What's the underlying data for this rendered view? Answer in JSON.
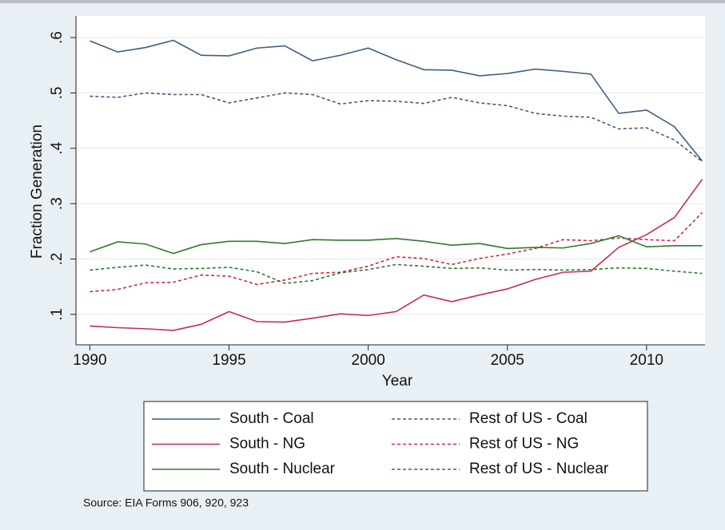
{
  "chart_data": {
    "type": "line",
    "xlabel": "Year",
    "ylabel": "Fraction Generation",
    "note": "Source: EIA Forms 906, 920, 923",
    "x": [
      1990,
      1991,
      1992,
      1993,
      1994,
      1995,
      1996,
      1997,
      1998,
      1999,
      2000,
      2001,
      2002,
      2003,
      2004,
      2005,
      2006,
      2007,
      2008,
      2009,
      2010,
      2011,
      2012
    ],
    "xlim": [
      1989.5,
      2012.1
    ],
    "xticks": [
      1990,
      1995,
      2000,
      2005,
      2010
    ],
    "ylim": [
      0.045,
      0.639
    ],
    "yticks": [
      {
        "value": 0.1,
        "label": ".1"
      },
      {
        "value": 0.2,
        "label": ".2"
      },
      {
        "value": 0.3,
        "label": ".3"
      },
      {
        "value": 0.4,
        "label": ".4"
      },
      {
        "value": 0.5,
        "label": ".5"
      },
      {
        "value": 0.6,
        "label": ".6"
      }
    ],
    "grid": true,
    "series": [
      {
        "name": "South - Coal",
        "color": "#3f5f80",
        "line_style": "solid",
        "values": [
          0.594,
          0.574,
          0.582,
          0.595,
          0.568,
          0.567,
          0.581,
          0.585,
          0.558,
          0.568,
          0.581,
          0.56,
          0.542,
          0.541,
          0.531,
          0.535,
          0.543,
          0.539,
          0.534,
          0.463,
          0.469,
          0.439,
          0.377
        ]
      },
      {
        "name": "Rest of US - Coal",
        "color": "#3f5f80",
        "line_style": "dashed",
        "values": [
          0.494,
          0.492,
          0.5,
          0.497,
          0.497,
          0.482,
          0.491,
          0.5,
          0.497,
          0.48,
          0.486,
          0.485,
          0.481,
          0.492,
          0.482,
          0.477,
          0.463,
          0.458,
          0.456,
          0.435,
          0.437,
          0.415,
          0.376
        ]
      },
      {
        "name": "South - NG",
        "color": "#c72c4e",
        "line_style": "solid",
        "values": [
          0.079,
          0.076,
          0.074,
          0.071,
          0.082,
          0.105,
          0.087,
          0.086,
          0.093,
          0.101,
          0.098,
          0.105,
          0.135,
          0.123,
          0.135,
          0.146,
          0.163,
          0.176,
          0.178,
          0.221,
          0.244,
          0.275,
          0.344
        ]
      },
      {
        "name": "Rest of US - NG",
        "color": "#c72c4e",
        "line_style": "dashed",
        "values": [
          0.141,
          0.145,
          0.157,
          0.158,
          0.171,
          0.169,
          0.154,
          0.162,
          0.174,
          0.176,
          0.187,
          0.204,
          0.201,
          0.19,
          0.201,
          0.209,
          0.219,
          0.235,
          0.233,
          0.238,
          0.235,
          0.233,
          0.284
        ]
      },
      {
        "name": "South - Nuclear",
        "color": "#2f7a2f",
        "line_style": "solid",
        "values": [
          0.213,
          0.231,
          0.227,
          0.21,
          0.226,
          0.232,
          0.232,
          0.228,
          0.235,
          0.234,
          0.234,
          0.237,
          0.232,
          0.225,
          0.228,
          0.219,
          0.221,
          0.22,
          0.228,
          0.242,
          0.222,
          0.224,
          0.224
        ]
      },
      {
        "name": "Rest of US - Nuclear",
        "color": "#2f7a2f",
        "line_style": "dashed",
        "values": [
          0.18,
          0.185,
          0.189,
          0.182,
          0.183,
          0.185,
          0.177,
          0.156,
          0.161,
          0.175,
          0.181,
          0.19,
          0.187,
          0.183,
          0.184,
          0.18,
          0.181,
          0.18,
          0.181,
          0.184,
          0.183,
          0.178,
          0.174
        ]
      }
    ]
  }
}
